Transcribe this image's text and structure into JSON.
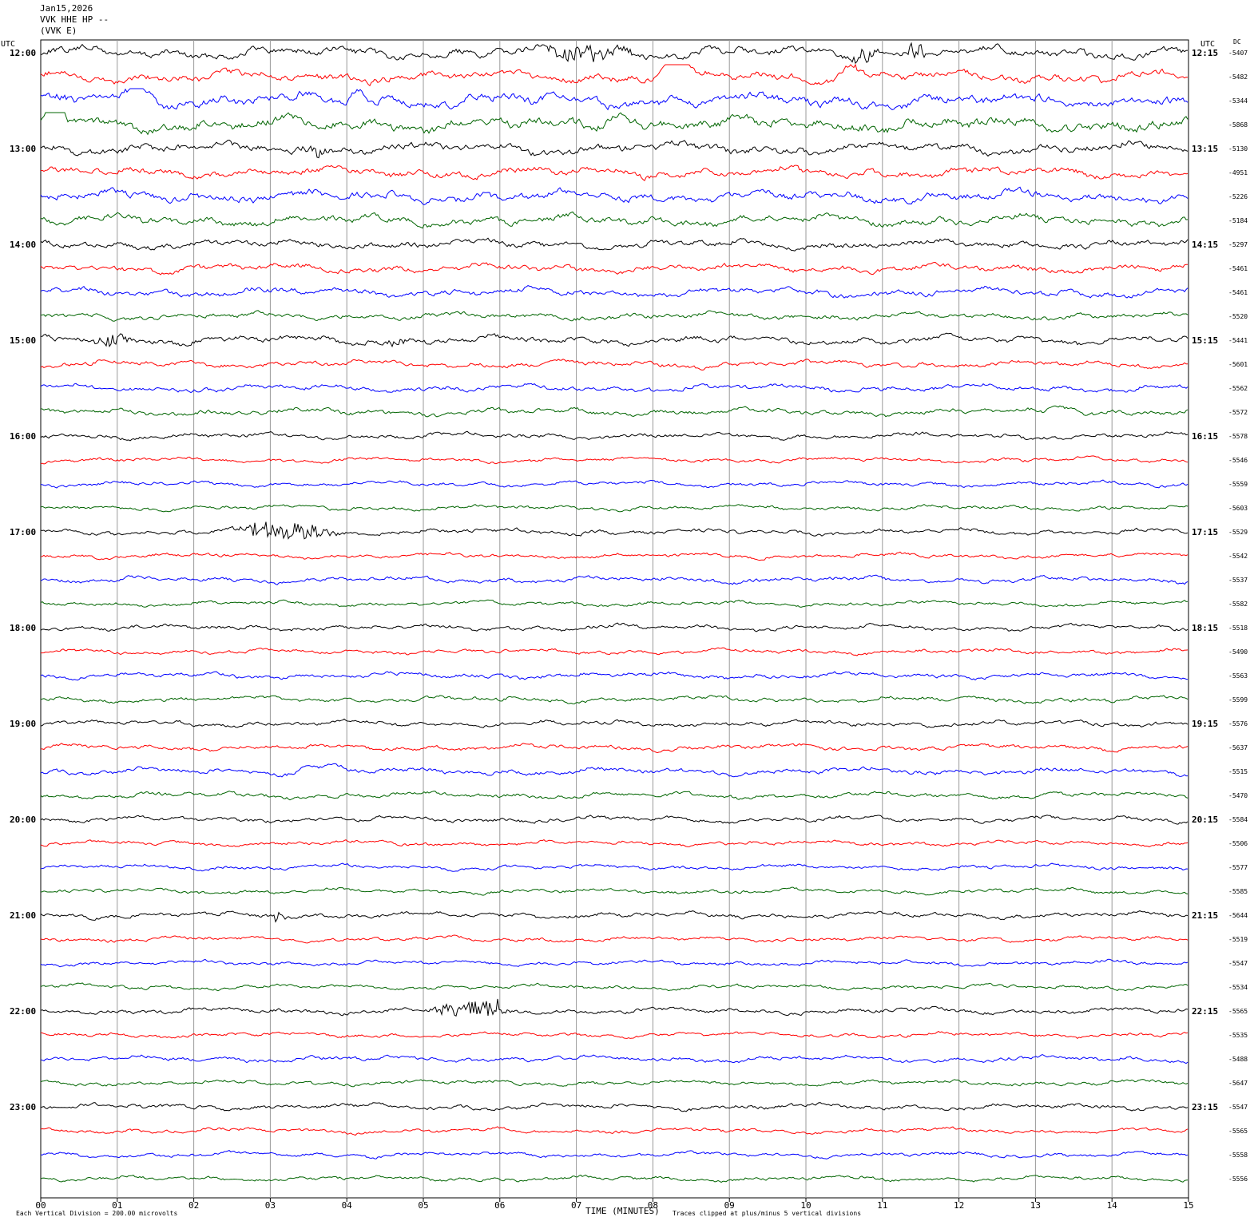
{
  "header": {
    "date": "Jan15,2026",
    "channel": "VVK HHE HP --",
    "station": "(VVK E)"
  },
  "corners": {
    "left_utc": "UTC",
    "right_utc": "UTC",
    "dc": "DC"
  },
  "footer": {
    "scale": "Each Vertical Division =  200.00 microvolts",
    "xlabel": "TIME (MINUTES)",
    "clip_note": "Traces clipped at plus/minus 5 vertical divisions"
  },
  "colors": {
    "cycle": [
      "#000000",
      "#ff0000",
      "#0000ff",
      "#006400"
    ],
    "grid": "#9a9a9a"
  },
  "chart_data": {
    "type": "line",
    "title": "",
    "xlabel": "TIME (MINUTES)",
    "ylabel": "",
    "xlim": [
      0,
      15
    ],
    "x_ticks": [
      "00",
      "01",
      "02",
      "03",
      "04",
      "05",
      "06",
      "07",
      "08",
      "09",
      "10",
      "11",
      "12",
      "13",
      "14",
      "15"
    ],
    "grid": true,
    "rows_per_hour": 4,
    "left_hour_labels": [
      "12:00",
      "13:00",
      "14:00",
      "15:00",
      "16:00",
      "17:00",
      "18:00",
      "19:00",
      "20:00",
      "21:00",
      "22:00",
      "23:00"
    ],
    "right_hour_labels": [
      "12:15",
      "13:15",
      "14:15",
      "15:15",
      "16:15",
      "17:15",
      "18:15",
      "19:15",
      "20:15",
      "21:15",
      "22:15",
      "23:15"
    ],
    "dc_offsets": [
      "-5407",
      "-5482",
      "-5344",
      "-5868",
      "-5130",
      "-4951",
      "-5226",
      "-5184",
      "-5297",
      "-5461",
      "-5461",
      "-5520",
      "-5441",
      "-5601",
      "-5562",
      "-5572",
      "-5578",
      "-5546",
      "-5559",
      "-5603",
      "-5529",
      "-5542",
      "-5537",
      "-5582",
      "-5518",
      "-5490",
      "-5563",
      "-5599",
      "-5576",
      "-5637",
      "-5515",
      "-5470",
      "-5584",
      "-5506",
      "-5577",
      "-5585",
      "-5644",
      "-5519",
      "-5547",
      "-5534",
      "-5565",
      "-5535",
      "-5488",
      "-5647",
      "-5547",
      "-5565",
      "-5558",
      "-5556"
    ],
    "noise_level": [
      2.6,
      2.6,
      3.2,
      3.4,
      2.6,
      2.4,
      2.6,
      2.4,
      2.0,
      2.0,
      2.0,
      1.6,
      2.0,
      1.6,
      1.6,
      1.6,
      1.4,
      1.2,
      1.2,
      1.2,
      1.4,
      1.2,
      1.4,
      1.2,
      1.4,
      1.2,
      1.4,
      1.4,
      1.4,
      1.4,
      1.6,
      1.4,
      1.4,
      1.2,
      1.2,
      1.2,
      1.4,
      1.2,
      1.2,
      1.2,
      1.4,
      1.2,
      1.4,
      1.2,
      1.4,
      1.2,
      1.2,
      1.2
    ],
    "events": [
      {
        "row": 0,
        "start_min": 6.5,
        "end_min": 7.8,
        "amplitude": 10,
        "kind": "burst"
      },
      {
        "row": 0,
        "start_min": 10.5,
        "end_min": 11.0,
        "amplitude": 12,
        "kind": "burst"
      },
      {
        "row": 0,
        "start_min": 11.3,
        "end_min": 11.6,
        "amplitude": 12,
        "kind": "burst"
      },
      {
        "row": 1,
        "start_min": 8.0,
        "end_min": 8.6,
        "amplitude": 22,
        "kind": "wave"
      },
      {
        "row": 1,
        "start_min": 10.4,
        "end_min": 10.8,
        "amplitude": 18,
        "kind": "wave"
      },
      {
        "row": 2,
        "start_min": 1.0,
        "end_min": 1.6,
        "amplitude": 22,
        "kind": "wave"
      },
      {
        "row": 2,
        "start_min": 4.0,
        "end_min": 4.3,
        "amplitude": 18,
        "kind": "wave"
      },
      {
        "row": 3,
        "start_min": 0.0,
        "end_min": 0.4,
        "amplitude": 22,
        "kind": "wave"
      },
      {
        "row": 3,
        "start_min": 7.2,
        "end_min": 7.9,
        "amplitude": 16,
        "kind": "wave"
      },
      {
        "row": 4,
        "start_min": 3.4,
        "end_min": 3.8,
        "amplitude": 7,
        "kind": "burst"
      },
      {
        "row": 12,
        "start_min": 0.6,
        "end_min": 1.2,
        "amplitude": 6,
        "kind": "burst"
      },
      {
        "row": 12,
        "start_min": 4.5,
        "end_min": 4.8,
        "amplitude": 5,
        "kind": "burst"
      },
      {
        "row": 15,
        "start_min": 13.1,
        "end_min": 13.6,
        "amplitude": 11,
        "kind": "wave"
      },
      {
        "row": 20,
        "start_min": 2.4,
        "end_min": 4.0,
        "amplitude": 11,
        "kind": "burst"
      },
      {
        "row": 30,
        "start_min": 3.3,
        "end_min": 4.0,
        "amplitude": 9,
        "kind": "wave"
      },
      {
        "row": 36,
        "start_min": 3.05,
        "end_min": 3.2,
        "amplitude": 16,
        "kind": "spike"
      },
      {
        "row": 40,
        "start_min": 5.0,
        "end_min": 6.3,
        "amplitude": 11,
        "kind": "burst"
      },
      {
        "row": 40,
        "start_min": 5.97,
        "end_min": 6.03,
        "amplitude": 20,
        "kind": "spike"
      }
    ]
  }
}
